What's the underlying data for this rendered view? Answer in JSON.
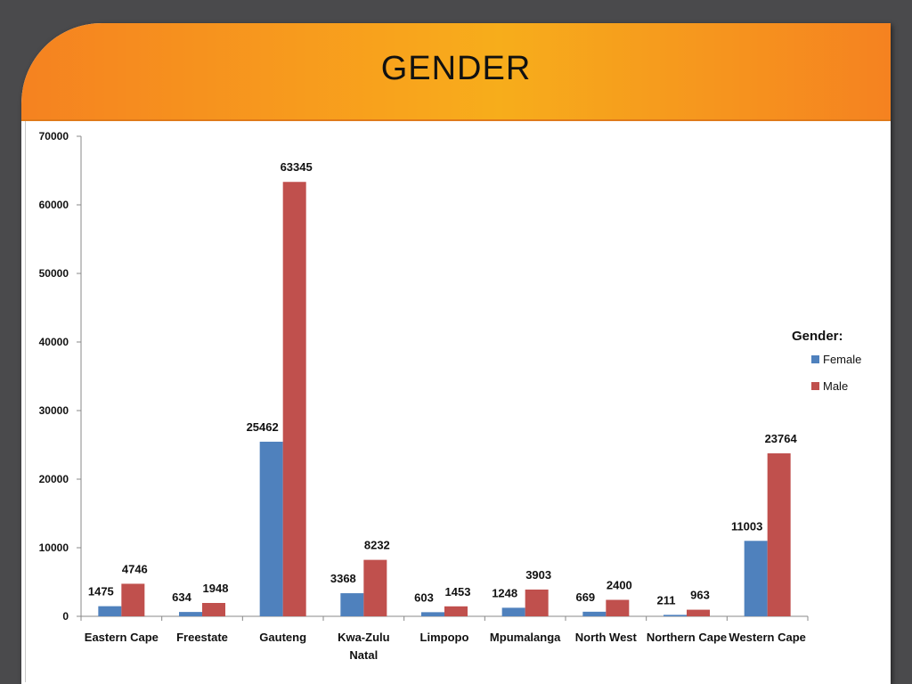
{
  "slide": {
    "title": "GENDER"
  },
  "chart_data": {
    "type": "bar",
    "categories": [
      "Eastern Cape",
      "Freestate",
      "Gauteng",
      "Kwa-Zulu Natal",
      "Limpopo",
      "Mpumalanga",
      "North West",
      "Northern Cape",
      "Western Cape"
    ],
    "category_lines": [
      [
        "Eastern Cape"
      ],
      [
        "Freestate"
      ],
      [
        "Gauteng"
      ],
      [
        "Kwa-Zulu",
        "Natal"
      ],
      [
        "Limpopo"
      ],
      [
        "Mpumalanga"
      ],
      [
        "North West"
      ],
      [
        "Northern Cape"
      ],
      [
        "Western Cape"
      ]
    ],
    "series": [
      {
        "name": "Female",
        "color": "#4f81bd",
        "values": [
          1475,
          634,
          25462,
          3368,
          603,
          1248,
          669,
          211,
          11003
        ]
      },
      {
        "name": "Male",
        "color": "#c0504d",
        "values": [
          4746,
          1948,
          63345,
          8232,
          1453,
          3903,
          2400,
          963,
          23764
        ]
      }
    ],
    "ylim": [
      0,
      70000
    ],
    "yticks": [
      0,
      10000,
      20000,
      30000,
      40000,
      50000,
      60000,
      70000
    ],
    "legend_title": "Gender:",
    "legend_position": "right",
    "grid": false
  }
}
